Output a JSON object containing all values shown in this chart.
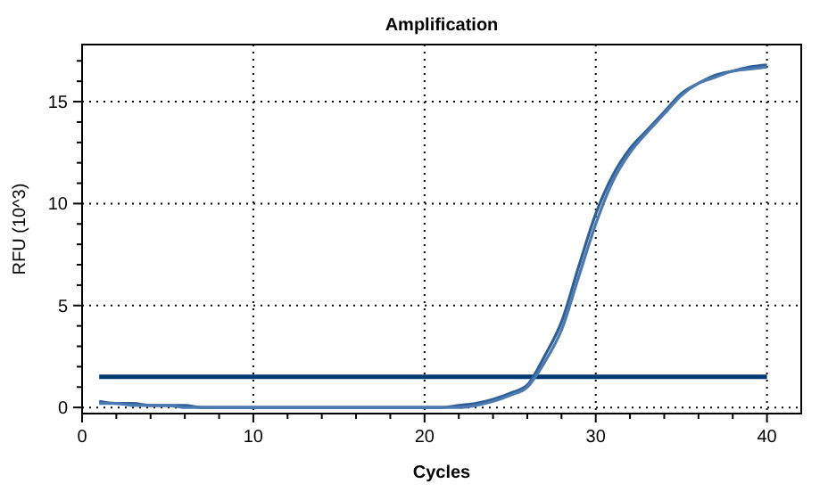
{
  "chart_data": {
    "type": "line",
    "title": "Amplification",
    "xlabel": "Cycles",
    "ylabel": "RFU (10^3)",
    "x": [
      1,
      2,
      3,
      4,
      5,
      6,
      7,
      8,
      9,
      10,
      11,
      12,
      13,
      14,
      15,
      16,
      17,
      18,
      19,
      20,
      21,
      22,
      23,
      24,
      25,
      26,
      27,
      28,
      29,
      30,
      31,
      32,
      33,
      34,
      35,
      36,
      37,
      38,
      39,
      40
    ],
    "series": [
      {
        "color": "#2f5f96",
        "values": [
          0.3,
          0.2,
          0.2,
          0.1,
          0.1,
          0.1,
          0,
          0,
          0,
          0,
          0,
          0,
          0,
          0,
          0,
          0,
          0,
          0,
          0,
          0,
          0,
          0.1,
          0.2,
          0.4,
          0.7,
          1.1,
          2.5,
          4.2,
          6.9,
          9.5,
          11.4,
          12.7,
          13.6,
          14.5,
          15.4,
          15.9,
          16.3,
          16.5,
          16.7,
          16.8
        ]
      },
      {
        "color": "#4a7ab0",
        "values": [
          0.2,
          0.2,
          0.1,
          0.1,
          0.1,
          0,
          0,
          0,
          0,
          0,
          0,
          0,
          0,
          0,
          0,
          0,
          0,
          0,
          0,
          0,
          0,
          0,
          0.1,
          0.3,
          0.6,
          1,
          2.2,
          3.8,
          6.4,
          9,
          11.1,
          12.5,
          13.5,
          14.4,
          15.3,
          15.9,
          16.2,
          16.5,
          16.6,
          16.7
        ]
      }
    ],
    "ref_lines": [
      {
        "axis": "y",
        "value": 1.5,
        "color": "#003a70"
      }
    ],
    "xlim": [
      0,
      42
    ],
    "ylim": [
      -0.3,
      17.8
    ],
    "xticks": [
      0,
      {
        "value": 2,
        "label": null
      },
      {
        "value": 4,
        "label": null
      },
      {
        "value": 6,
        "label": null
      },
      {
        "value": 8,
        "label": null
      },
      10,
      {
        "value": 12,
        "label": null
      },
      {
        "value": 14,
        "label": null
      },
      {
        "value": 16,
        "label": null
      },
      {
        "value": 18,
        "label": null
      },
      20,
      {
        "value": 22,
        "label": null
      },
      {
        "value": 24,
        "label": null
      },
      {
        "value": 26,
        "label": null
      },
      {
        "value": 28,
        "label": null
      },
      30,
      {
        "value": 32,
        "label": null
      },
      {
        "value": 34,
        "label": null
      },
      {
        "value": 36,
        "label": null
      },
      {
        "value": 38,
        "label": null
      },
      40
    ],
    "yticks": [
      0,
      {
        "value": 1,
        "label": null
      },
      {
        "value": 2,
        "label": null
      },
      {
        "value": 3,
        "label": null
      },
      {
        "value": 4,
        "label": null
      },
      5,
      {
        "value": 6,
        "label": null
      },
      {
        "value": 7,
        "label": null
      },
      {
        "value": 8,
        "label": null
      },
      {
        "value": 9,
        "label": null
      },
      10,
      {
        "value": 11,
        "label": null
      },
      {
        "value": 12,
        "label": null
      },
      {
        "value": 13,
        "label": null
      },
      {
        "value": 14,
        "label": null
      },
      15,
      {
        "value": 16,
        "label": null
      },
      {
        "value": 17,
        "label": null
      }
    ],
    "grid": true,
    "line_style": "solid"
  }
}
